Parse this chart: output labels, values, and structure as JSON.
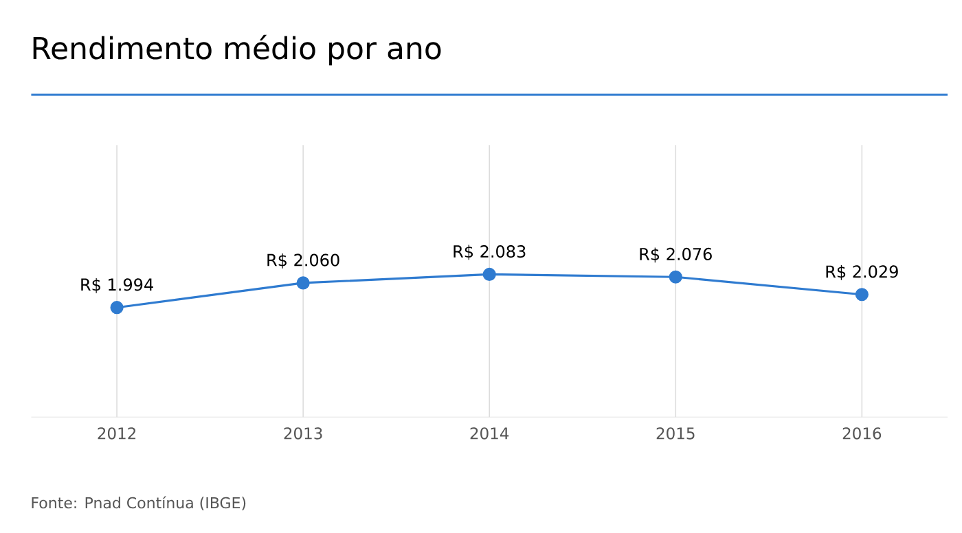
{
  "chart_data": {
    "type": "line",
    "title": "Rendimento médio por ano",
    "categories": [
      "2012",
      "2013",
      "2014",
      "2015",
      "2016"
    ],
    "series": [
      {
        "color": "#2f7bd0",
        "values": [
          1994,
          2060,
          2083,
          2076,
          2029
        ],
        "value_labels": [
          "R$ 1.994",
          "R$ 2.060",
          "R$ 2.083",
          "R$ 2.076",
          "R$ 2.029"
        ]
      }
    ],
    "ylim": [
      1700,
      2430
    ],
    "grid": "x",
    "marker": "circle",
    "line_style": "solid",
    "annotations": [
      "Fonte: Pnad Contínua (IBGE)"
    ]
  }
}
